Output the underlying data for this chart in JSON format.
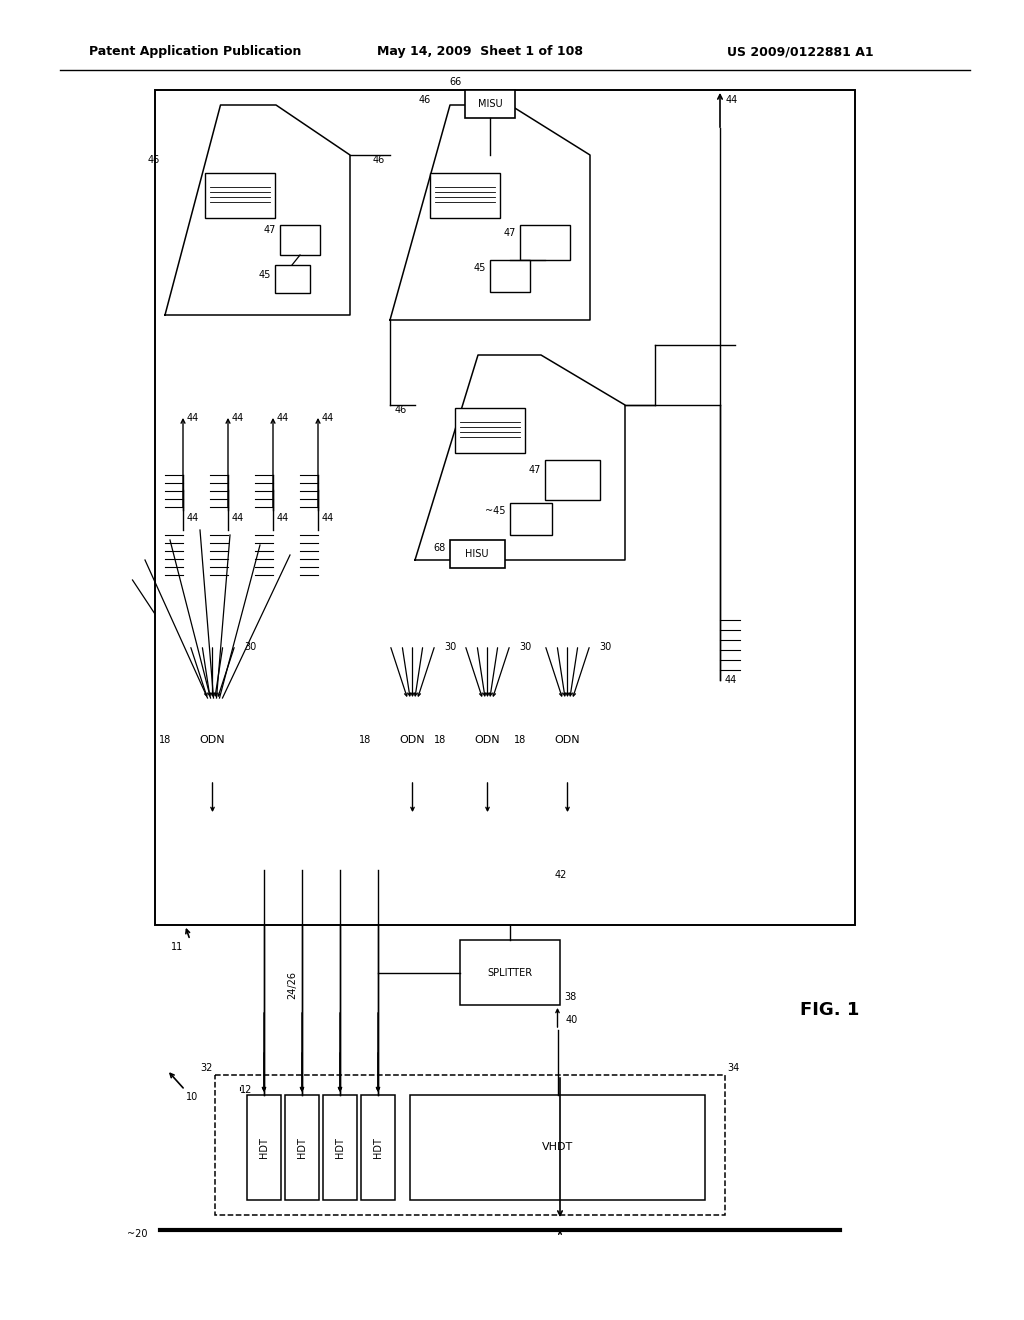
{
  "bg_color": "#ffffff",
  "header_text": "Patent Application Publication",
  "header_date": "May 14, 2009  Sheet 1 of 108",
  "header_patent": "US 2009/0122881 A1"
}
